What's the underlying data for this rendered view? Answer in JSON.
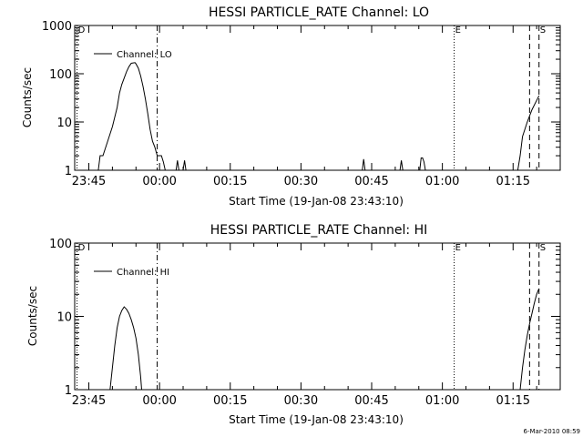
{
  "timestamp": "6-Mar-2010 08:59",
  "chart_data": [
    {
      "type": "line",
      "title": "HESSI PARTICLE_RATE Channel: LO",
      "xlabel": "Start Time (19-Jan-08 23:43:10)",
      "ylabel": "Counts/sec",
      "yscale": "log",
      "ylim": [
        1,
        1000
      ],
      "yticks": [
        1,
        10,
        100,
        1000
      ],
      "ytick_labels": [
        "1",
        "10",
        "100",
        "1000"
      ],
      "xlim_minutes": [
        -18,
        85
      ],
      "xtick_minutes": [
        -15,
        0,
        15,
        30,
        45,
        60,
        75
      ],
      "xtick_labels": [
        "23:45",
        "00:00",
        "00:15",
        "00:30",
        "00:45",
        "01:00",
        "01:15"
      ],
      "legend": {
        "label": "Channel: LO",
        "position": "top-left"
      },
      "markers": [
        {
          "label": "D",
          "minute": -17.5,
          "style": "dotted"
        },
        {
          "label": "",
          "minute": -0.5,
          "style": "dashdot"
        },
        {
          "label": "E",
          "minute": 62.5,
          "style": "dotted"
        },
        {
          "label": "",
          "minute": 78.5,
          "style": "dashed"
        },
        {
          "label": "S",
          "minute": 80.5,
          "style": "dashed"
        }
      ],
      "series": [
        {
          "x": [
            -13,
            -12.6,
            -12,
            -11,
            -10,
            -9,
            -8.5,
            -8,
            -7,
            -6.5,
            -6,
            -5.2,
            -5,
            -4.5,
            -4,
            -3.5,
            -3,
            -2.5,
            -2,
            -1.5,
            -1,
            -0.5,
            0,
            0.4,
            0.8,
            1.2,
            3.5,
            3.8,
            4.1,
            5,
            5.3,
            5.6,
            43,
            43.3,
            43.6,
            51,
            51.3,
            51.6,
            55.2,
            55.5,
            55.8,
            56.1,
            56.4,
            76,
            76.5,
            77,
            78,
            79,
            80,
            80.5
          ],
          "y": [
            1,
            2,
            2,
            4,
            8,
            20,
            40,
            60,
            110,
            140,
            165,
            170,
            160,
            130,
            90,
            55,
            30,
            15,
            7,
            4,
            3,
            2,
            2,
            2,
            1.5,
            1,
            1,
            1.6,
            1,
            1,
            1.6,
            1,
            1,
            1.7,
            1,
            1,
            1.6,
            1,
            1,
            1.8,
            1.8,
            1.5,
            1,
            1,
            2,
            5,
            10,
            18,
            28,
            35
          ]
        }
      ]
    },
    {
      "type": "line",
      "title": "HESSI PARTICLE_RATE Channel: HI",
      "xlabel": "Start Time (19-Jan-08 23:43:10)",
      "ylabel": "Counts/sec",
      "yscale": "log",
      "ylim": [
        1,
        100
      ],
      "yticks": [
        1,
        10,
        100
      ],
      "ytick_labels": [
        "1",
        "10",
        "100"
      ],
      "xlim_minutes": [
        -18,
        85
      ],
      "xtick_minutes": [
        -15,
        0,
        15,
        30,
        45,
        60,
        75
      ],
      "xtick_labels": [
        "23:45",
        "00:00",
        "00:15",
        "00:30",
        "00:45",
        "01:00",
        "01:15"
      ],
      "legend": {
        "label": "Channel: HI",
        "position": "top-left"
      },
      "markers": [
        {
          "label": "D",
          "minute": -17.5,
          "style": "dotted"
        },
        {
          "label": "",
          "minute": -0.5,
          "style": "dashdot"
        },
        {
          "label": "E",
          "minute": 62.5,
          "style": "dotted"
        },
        {
          "label": "",
          "minute": 78.5,
          "style": "dashed"
        },
        {
          "label": "S",
          "minute": 80.5,
          "style": "dashed"
        }
      ],
      "series": [
        {
          "x": [
            -10.5,
            -10,
            -9.5,
            -9,
            -8.5,
            -8,
            -7.5,
            -7,
            -6.5,
            -6,
            -5.5,
            -5,
            -4.5,
            -4,
            -3.8
          ],
          "y": [
            1,
            2,
            4,
            7,
            10,
            12,
            13.5,
            12.5,
            11,
            9,
            7,
            5,
            3,
            1.5,
            1
          ]
        },
        {
          "x": [
            76.5,
            77,
            77.5,
            78,
            78.5,
            79,
            79.5,
            80,
            80.5
          ],
          "y": [
            1,
            2,
            3.5,
            5.5,
            8,
            11,
            15,
            20,
            24
          ]
        }
      ]
    }
  ]
}
